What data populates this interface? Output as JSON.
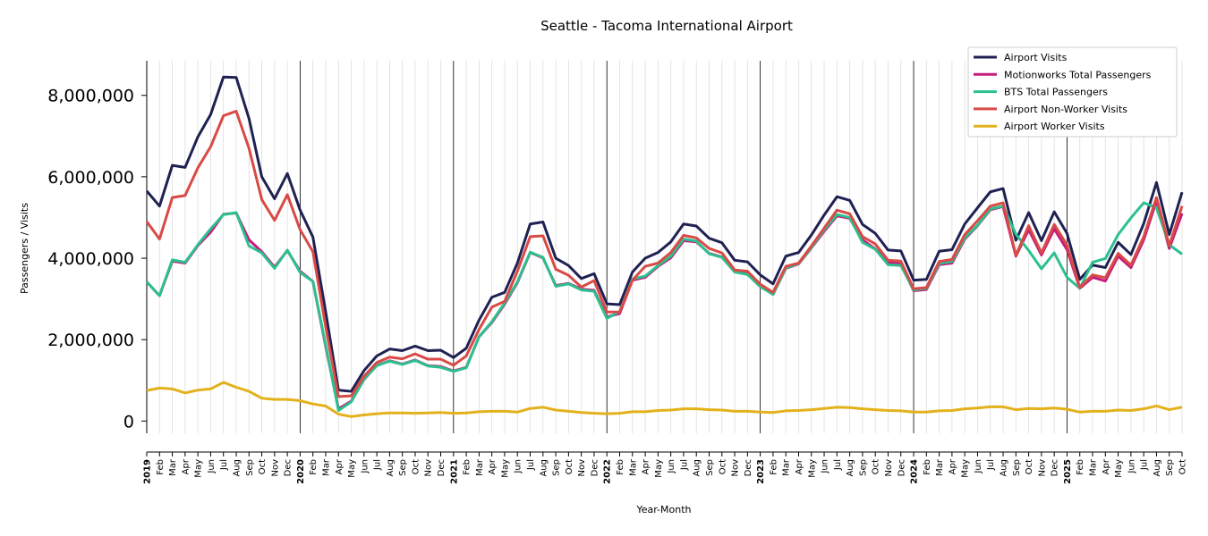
{
  "chart_data": {
    "type": "line",
    "title": "Seattle - Tacoma International Airport",
    "xlabel": "Year-Month",
    "ylabel": "Passengers / Visits",
    "ylim": [
      -300000,
      8850000
    ],
    "yticks": [
      0,
      2000000,
      4000000,
      6000000,
      8000000
    ],
    "ytick_labels": [
      "0",
      "2,000,000",
      "4,000,000",
      "6,000,000",
      "8,000,000"
    ],
    "x_tick_labels": [
      "2019",
      "Feb",
      "Mar",
      "Apr",
      "May",
      "Jun",
      "Jul",
      "Aug",
      "Sep",
      "Oct",
      "Nov",
      "Dec",
      "2020",
      "Feb",
      "Mar",
      "Apr",
      "May",
      "Jun",
      "Jul",
      "Aug",
      "Sep",
      "Oct",
      "Nov",
      "Dec",
      "2021",
      "Feb",
      "Mar",
      "Apr",
      "May",
      "Jun",
      "Jul",
      "Aug",
      "Sep",
      "Oct",
      "Nov",
      "Dec",
      "2022",
      "Feb",
      "Mar",
      "Apr",
      "May",
      "Jun",
      "Jul",
      "Aug",
      "Sep",
      "Oct",
      "Nov",
      "Dec",
      "2023",
      "Feb",
      "Mar",
      "Apr",
      "May",
      "Jun",
      "Jul",
      "Aug",
      "Sep",
      "Oct",
      "Nov",
      "Dec",
      "2024",
      "Feb",
      "Mar",
      "Apr",
      "May",
      "Jun",
      "Jul",
      "Aug",
      "Sep",
      "Oct",
      "Nov",
      "Dec",
      "2025",
      "Feb",
      "Mar",
      "Apr",
      "May",
      "Jun",
      "Jul",
      "Aug",
      "Sep",
      "Oct"
    ],
    "year_labels": [
      "2019",
      "2020",
      "2021",
      "2022",
      "2023",
      "2024",
      "2025"
    ],
    "grid": "vertical",
    "legend_position": "top-right",
    "series": [
      {
        "name": "Airport Visits",
        "color": "#1f2152",
        "values": [
          5650000,
          5280000,
          6280000,
          6230000,
          6980000,
          7530000,
          8450000,
          8440000,
          7430000,
          6000000,
          5460000,
          6080000,
          5180000,
          4520000,
          2680000,
          760000,
          730000,
          1240000,
          1600000,
          1770000,
          1730000,
          1840000,
          1730000,
          1740000,
          1560000,
          1790000,
          2480000,
          3040000,
          3160000,
          3880000,
          4840000,
          4890000,
          4000000,
          3820000,
          3500000,
          3620000,
          2880000,
          2860000,
          3660000,
          4000000,
          4140000,
          4400000,
          4840000,
          4790000,
          4490000,
          4380000,
          3950000,
          3910000,
          3590000,
          3370000,
          4050000,
          4140000,
          4570000,
          5060000,
          5510000,
          5420000,
          4830000,
          4610000,
          4200000,
          4180000,
          3460000,
          3480000,
          4170000,
          4210000,
          4840000,
          5240000,
          5630000,
          5710000,
          4440000,
          5120000,
          4430000,
          5140000,
          4610000,
          3480000,
          3830000,
          3770000,
          4390000,
          4090000,
          4850000,
          5860000,
          4580000,
          5620000
        ]
      },
      {
        "name": "Motionworks Total Passengers",
        "color": "#c51b7d",
        "values": [
          3420000,
          3080000,
          3930000,
          3880000,
          4310000,
          4640000,
          5080000,
          5110000,
          4450000,
          4160000,
          3780000,
          4190000,
          3680000,
          3430000,
          1830000,
          300000,
          490000,
          1020000,
          1370000,
          1480000,
          1400000,
          1500000,
          1360000,
          1340000,
          1230000,
          1320000,
          2070000,
          2420000,
          2870000,
          3400000,
          4140000,
          4010000,
          3330000,
          3380000,
          3240000,
          3210000,
          2560000,
          2640000,
          3460000,
          3530000,
          3800000,
          4010000,
          4430000,
          4400000,
          4120000,
          4030000,
          3670000,
          3620000,
          3320000,
          3110000,
          3750000,
          3860000,
          4250000,
          4660000,
          5040000,
          4980000,
          4450000,
          4230000,
          3890000,
          3860000,
          3200000,
          3230000,
          3840000,
          3880000,
          4470000,
          4800000,
          5190000,
          5270000,
          4050000,
          4700000,
          4080000,
          4720000,
          4210000,
          3260000,
          3530000,
          3440000,
          4050000,
          3770000,
          4450000,
          5410000,
          4240000,
          5100000
        ]
      },
      {
        "name": "BTS Total Passengers",
        "color": "#2cc08f",
        "values": [
          3420000,
          3080000,
          3960000,
          3900000,
          4330000,
          4720000,
          5070000,
          5120000,
          4300000,
          4130000,
          3750000,
          4200000,
          3650000,
          3430000,
          1870000,
          260000,
          470000,
          1030000,
          1360000,
          1470000,
          1390000,
          1490000,
          1350000,
          1320000,
          1220000,
          1310000,
          2070000,
          2440000,
          2900000,
          3420000,
          4150000,
          4020000,
          3310000,
          3370000,
          3220000,
          3190000,
          2520000,
          2690000,
          3490000,
          3560000,
          3820000,
          4050000,
          4470000,
          4420000,
          4110000,
          4020000,
          3660000,
          3600000,
          3300000,
          3110000,
          3760000,
          3870000,
          4260000,
          4700000,
          5070000,
          5000000,
          4390000,
          4220000,
          3840000,
          3820000,
          3220000,
          3260000,
          3870000,
          3920000,
          4500000,
          4810000,
          5210000,
          5280000,
          4590000,
          4190000,
          3740000,
          4130000,
          3530000,
          3260000,
          3900000,
          3990000,
          4580000,
          4990000,
          5360000,
          5240000,
          4330000,
          4100000
        ]
      },
      {
        "name": "Airport Non-Worker Visits",
        "color": "#d94a46",
        "values": [
          4900000,
          4470000,
          5490000,
          5540000,
          6220000,
          6740000,
          7500000,
          7610000,
          6700000,
          5440000,
          4930000,
          5560000,
          4700000,
          4160000,
          2310000,
          600000,
          620000,
          1100000,
          1440000,
          1570000,
          1530000,
          1650000,
          1520000,
          1520000,
          1370000,
          1600000,
          2250000,
          2800000,
          2940000,
          3680000,
          4530000,
          4550000,
          3730000,
          3580000,
          3290000,
          3450000,
          2680000,
          2680000,
          3460000,
          3800000,
          3880000,
          4140000,
          4560000,
          4500000,
          4240000,
          4130000,
          3710000,
          3680000,
          3360000,
          3160000,
          3800000,
          3880000,
          4300000,
          4740000,
          5180000,
          5090000,
          4530000,
          4350000,
          3950000,
          3930000,
          3250000,
          3280000,
          3920000,
          3970000,
          4580000,
          4920000,
          5280000,
          5360000,
          4070000,
          4800000,
          4130000,
          4830000,
          4320000,
          3280000,
          3590000,
          3520000,
          4120000,
          3830000,
          4530000,
          5490000,
          4310000,
          5280000
        ]
      },
      {
        "name": "Airport Worker Visits",
        "color": "#e3b11b",
        "values": [
          750000,
          810000,
          790000,
          690000,
          760000,
          790000,
          950000,
          830000,
          730000,
          560000,
          530000,
          530000,
          500000,
          420000,
          370000,
          170000,
          110000,
          150000,
          180000,
          200000,
          200000,
          190000,
          200000,
          210000,
          190000,
          200000,
          230000,
          240000,
          240000,
          220000,
          310000,
          340000,
          270000,
          240000,
          210000,
          190000,
          180000,
          190000,
          230000,
          230000,
          260000,
          270000,
          300000,
          300000,
          280000,
          270000,
          240000,
          240000,
          220000,
          210000,
          250000,
          260000,
          280000,
          310000,
          340000,
          330000,
          300000,
          280000,
          260000,
          250000,
          220000,
          220000,
          250000,
          260000,
          300000,
          320000,
          350000,
          350000,
          280000,
          310000,
          300000,
          320000,
          290000,
          220000,
          240000,
          240000,
          270000,
          260000,
          300000,
          370000,
          280000,
          340000
        ]
      }
    ]
  }
}
